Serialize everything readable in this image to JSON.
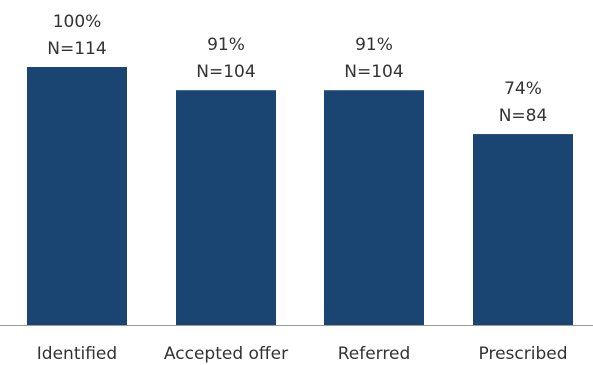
{
  "chart_data": {
    "type": "bar",
    "categories": [
      "Identified",
      "Accepted offer",
      "Referred",
      "Prescribed"
    ],
    "values": [
      100,
      91,
      91,
      74
    ],
    "value_labels": [
      "100%",
      "91%",
      "91%",
      "74%"
    ],
    "counts": [
      "N=114",
      "N=104",
      "N=104",
      "N=84"
    ],
    "title": "",
    "xlabel": "",
    "ylabel": "",
    "ylim": [
      0,
      100
    ],
    "grid": false,
    "legend": "none",
    "bar_color": "#1a4472",
    "axis_color": "#999999"
  }
}
